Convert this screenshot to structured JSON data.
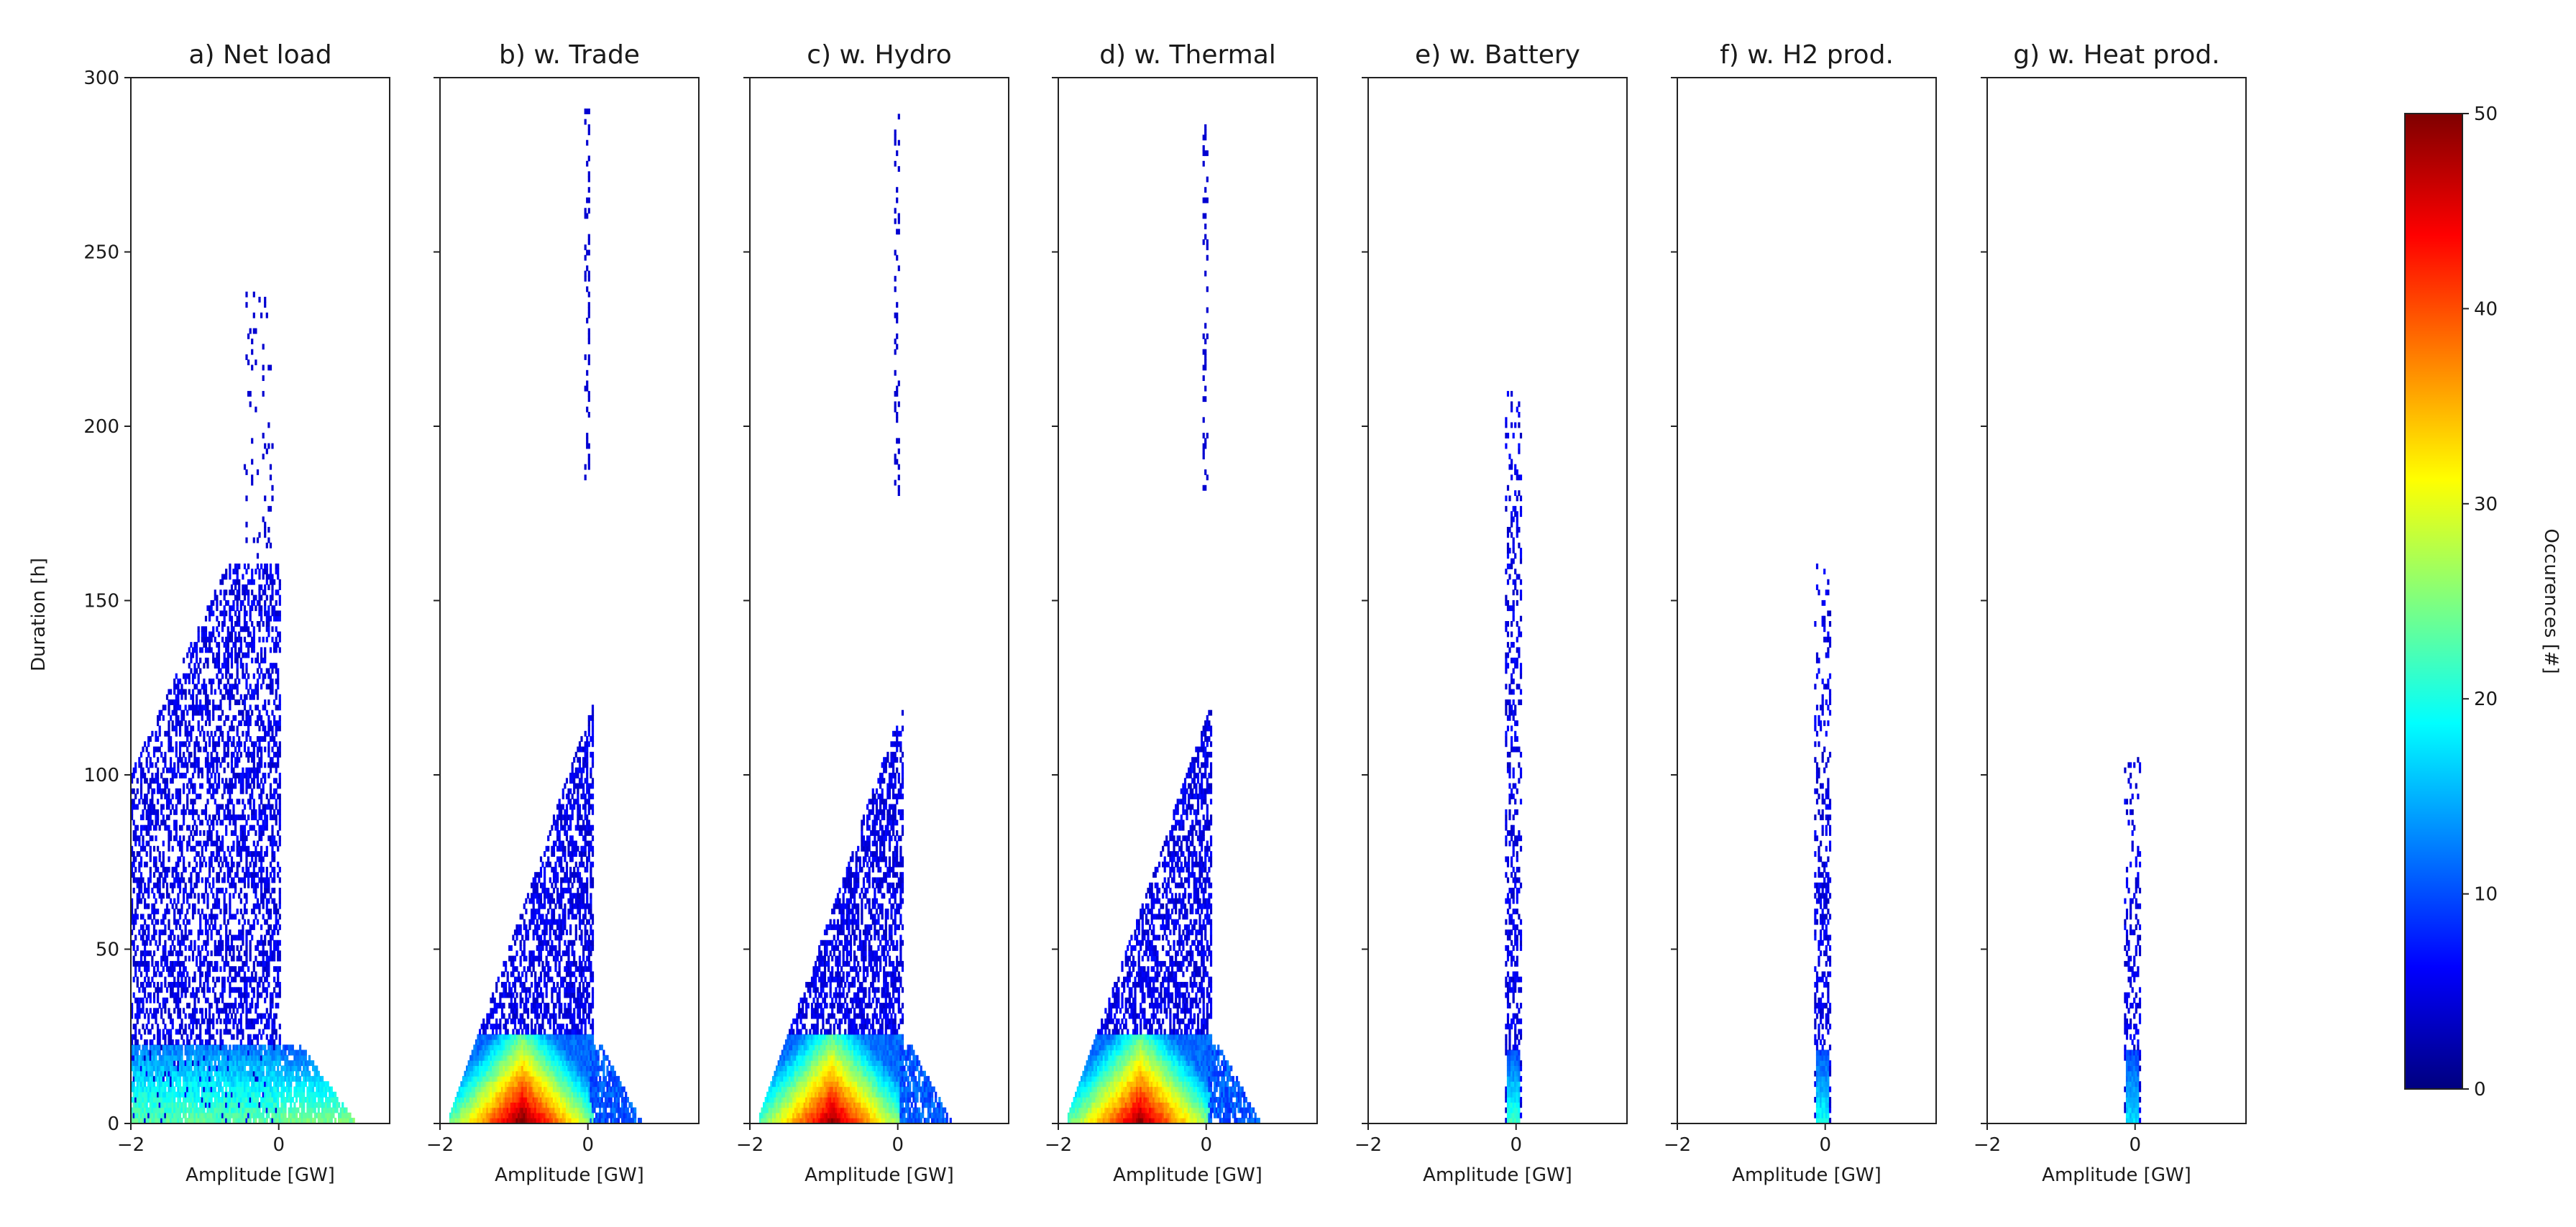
{
  "chart_data": {
    "type": "heatmap",
    "panels": [
      {
        "title": "a) Net load",
        "shape": "netload",
        "core": 0.55
      },
      {
        "title": "b) w. Trade",
        "shape": "wedge",
        "core": 1.0
      },
      {
        "title": "c) w. Hydro",
        "shape": "wedge",
        "core": 0.95
      },
      {
        "title": "d) w. Thermal",
        "shape": "wedge",
        "core": 0.95
      },
      {
        "title": "e) w. Battery",
        "shape": "column",
        "maxDur": 210,
        "core": 0.55
      },
      {
        "title": "f) w. H2 prod.",
        "shape": "column",
        "maxDur": 160,
        "core": 0.45
      },
      {
        "title": "g) w. Heat prod.",
        "shape": "column",
        "maxDur": 105,
        "core": 0.35
      }
    ],
    "xlabel": "Amplitude [GW]",
    "ylabel": "Duration [h]",
    "xlim": [
      -2,
      1.5
    ],
    "ylim": [
      0,
      300
    ],
    "xticks": [
      -2,
      0
    ],
    "yticks": [
      0,
      50,
      100,
      150,
      200,
      250,
      300
    ],
    "colorbar": {
      "label": "Occurences [#]",
      "min": 0,
      "max": 50,
      "ticks": [
        0,
        10,
        20,
        30,
        40,
        50
      ],
      "colormap": "jet"
    }
  }
}
